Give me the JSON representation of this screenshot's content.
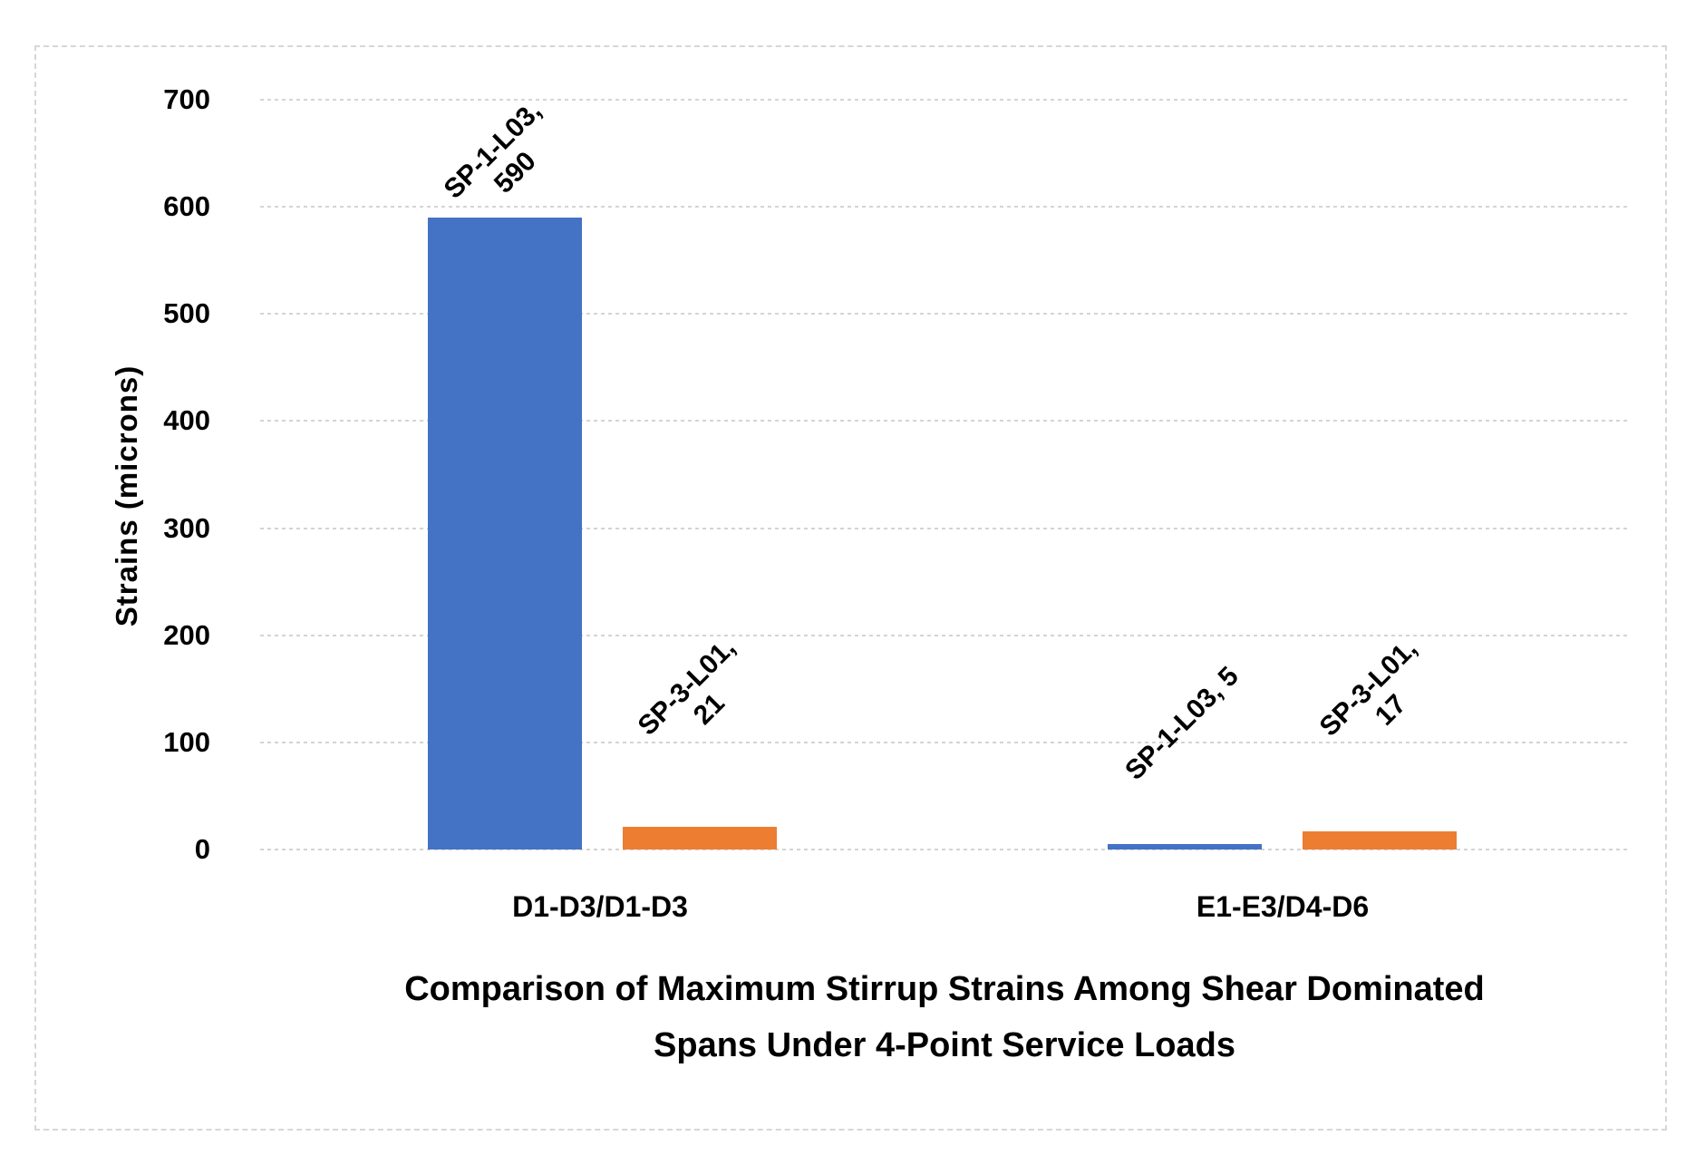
{
  "chart_data": {
    "type": "bar",
    "categories": [
      "D1-D3/D1-D3",
      "E1-E3/D4-D6"
    ],
    "series": [
      {
        "name": "SP-1-L03",
        "color": "#4472C4",
        "values": [
          590,
          5
        ]
      },
      {
        "name": "SP-3-L01",
        "color": "#ED7D31",
        "values": [
          21,
          17
        ]
      }
    ],
    "bar_label_display": [
      "SP-1-L03,\n590",
      "SP-3-L01,\n21",
      "SP-1-L03, 5",
      "SP-3-L01,\n17"
    ],
    "data_label_rotation_deg": -45,
    "ylabel": "Strains (microns)",
    "xlabel": "Comparison of Maximum Stirrup Strains Among Shear Dominated Spans Under 4-Point Service Loads",
    "xlabel_display": "Comparison of Maximum Stirrup Strains Among Shear Dominated\nSpans Under 4-Point Service Loads",
    "ylim": [
      0,
      700
    ],
    "yticks": [
      0,
      100,
      200,
      300,
      400,
      500,
      600,
      700
    ],
    "grid": "horizontal-dashed",
    "legend": "none",
    "colors": {
      "series_1": "#4472C4",
      "series_2": "#ED7D31",
      "gridline": "#D4D4D4",
      "frame_border": "#D7D7D7",
      "text": "#000000",
      "background": "#FFFFFF"
    }
  }
}
